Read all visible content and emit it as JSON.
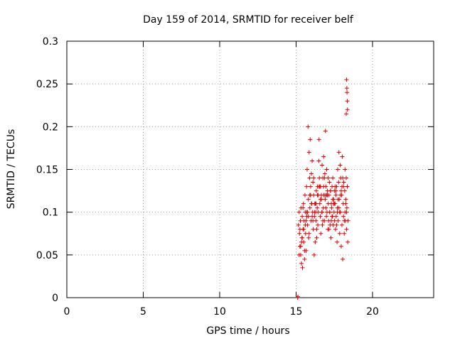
{
  "chart_data": {
    "type": "scatter",
    "title": "Day 159 of 2014, SRMTID for receiver belf",
    "xlabel": "GPS time / hours",
    "ylabel": "SRMTID / TECUs",
    "xlim": [
      0,
      24
    ],
    "ylim": [
      0,
      0.3
    ],
    "xticks": [
      0,
      5,
      10,
      15,
      20
    ],
    "xtick_labels": [
      "0",
      "5",
      "10",
      "15",
      "20"
    ],
    "yticks": [
      0,
      0.05,
      0.1,
      0.15,
      0.2,
      0.25,
      0.3
    ],
    "ytick_labels": [
      "0",
      "0.05",
      "0.1",
      "0.15",
      "0.2",
      "0.25",
      "0.3"
    ],
    "grid": true,
    "marker": "+",
    "color": "#e00000",
    "series": [
      {
        "name": "SRMTID",
        "x": [
          15.1,
          15.12,
          15.15,
          15.2,
          15.22,
          15.25,
          15.28,
          15.3,
          15.32,
          15.35,
          15.38,
          15.4,
          15.42,
          15.45,
          15.48,
          15.5,
          15.52,
          15.55,
          15.58,
          15.6,
          15.62,
          15.65,
          15.68,
          15.7,
          15.72,
          15.75,
          15.78,
          15.8,
          15.82,
          15.85,
          15.88,
          15.9,
          15.92,
          15.95,
          15.98,
          16.0,
          16.02,
          16.05,
          16.08,
          16.1,
          16.12,
          16.15,
          16.18,
          16.2,
          16.22,
          16.25,
          16.28,
          16.3,
          16.32,
          16.35,
          16.38,
          16.4,
          16.42,
          16.45,
          16.48,
          16.5,
          16.52,
          16.55,
          16.58,
          16.6,
          16.62,
          16.65,
          16.68,
          16.7,
          16.72,
          16.75,
          16.78,
          16.8,
          16.82,
          16.85,
          16.88,
          16.9,
          16.92,
          16.95,
          16.98,
          17.0,
          17.02,
          17.05,
          17.08,
          17.1,
          17.12,
          17.15,
          17.18,
          17.2,
          17.22,
          17.25,
          17.28,
          17.3,
          17.32,
          17.35,
          17.38,
          17.4,
          17.42,
          17.45,
          17.48,
          17.5,
          17.52,
          17.55,
          17.58,
          17.6,
          17.62,
          17.65,
          17.68,
          17.7,
          17.72,
          17.75,
          17.78,
          17.8,
          17.82,
          17.85,
          17.88,
          17.9,
          17.92,
          17.95,
          17.98,
          18.0,
          18.02,
          18.05,
          18.08,
          18.1,
          18.12,
          18.15,
          18.18,
          18.2,
          18.22,
          18.25,
          18.28,
          18.3,
          18.32,
          18.35,
          18.38,
          18.4,
          15.25,
          15.35,
          15.45,
          15.55,
          15.65,
          15.75,
          15.85,
          15.95,
          16.05,
          16.15,
          16.25,
          16.35,
          16.45,
          16.55,
          16.65,
          16.75,
          16.85,
          16.95,
          17.05,
          17.15,
          17.25,
          17.35,
          17.45,
          17.55,
          17.65,
          17.75,
          17.85,
          17.95,
          18.05,
          18.15,
          18.25,
          18.35,
          15.3,
          15.5,
          15.7,
          15.9,
          16.1,
          16.3,
          16.5,
          16.7,
          16.9,
          17.1,
          17.3,
          17.5,
          17.7,
          17.9,
          18.1,
          18.3,
          15.2,
          15.4,
          15.6,
          15.8,
          16.0,
          16.2,
          16.4,
          16.6,
          16.8,
          17.0,
          17.2,
          17.4,
          17.6,
          17.8,
          18.0,
          18.2,
          18.3,
          18.32,
          18.35,
          18.28,
          18.33,
          18.36
        ],
        "y": [
          0.0,
          0.001,
          0.085,
          0.1,
          0.075,
          0.06,
          0.09,
          0.05,
          0.105,
          0.04,
          0.07,
          0.095,
          0.035,
          0.08,
          0.11,
          0.065,
          0.09,
          0.045,
          0.12,
          0.1,
          0.075,
          0.055,
          0.13,
          0.095,
          0.15,
          0.085,
          0.2,
          0.115,
          0.07,
          0.17,
          0.14,
          0.105,
          0.185,
          0.13,
          0.09,
          0.145,
          0.11,
          0.16,
          0.1,
          0.135,
          0.08,
          0.12,
          0.05,
          0.095,
          0.11,
          0.065,
          0.1,
          0.09,
          0.125,
          0.07,
          0.105,
          0.13,
          0.085,
          0.12,
          0.16,
          0.185,
          0.14,
          0.11,
          0.095,
          0.13,
          0.075,
          0.12,
          0.1,
          0.155,
          0.085,
          0.14,
          0.105,
          0.165,
          0.12,
          0.09,
          0.145,
          0.115,
          0.195,
          0.13,
          0.095,
          0.15,
          0.1,
          0.125,
          0.08,
          0.11,
          0.09,
          0.12,
          0.135,
          0.1,
          0.085,
          0.125,
          0.07,
          0.11,
          0.105,
          0.13,
          0.095,
          0.14,
          0.085,
          0.115,
          0.1,
          0.125,
          0.09,
          0.11,
          0.08,
          0.12,
          0.095,
          0.13,
          0.065,
          0.105,
          0.15,
          0.09,
          0.135,
          0.17,
          0.115,
          0.075,
          0.155,
          0.1,
          0.14,
          0.06,
          0.12,
          0.085,
          0.165,
          0.045,
          0.11,
          0.095,
          0.135,
          0.075,
          0.125,
          0.1,
          0.09,
          0.115,
          0.14,
          0.08,
          0.105,
          0.13,
          0.065,
          0.09,
          0.08,
          0.065,
          0.105,
          0.055,
          0.09,
          0.1,
          0.075,
          0.12,
          0.095,
          0.14,
          0.11,
          0.08,
          0.1,
          0.13,
          0.115,
          0.09,
          0.14,
          0.105,
          0.12,
          0.08,
          0.125,
          0.095,
          0.11,
          0.13,
          0.085,
          0.115,
          0.1,
          0.125,
          0.14,
          0.09,
          0.11,
          0.13,
          0.06,
          0.08,
          0.1,
          0.12,
          0.09,
          0.11,
          0.13,
          0.1,
          0.12,
          0.14,
          0.09,
          0.11,
          0.1,
          0.12,
          0.13,
          0.1,
          0.05,
          0.07,
          0.085,
          0.095,
          0.11,
          0.1,
          0.12,
          0.115,
          0.13,
          0.12,
          0.1,
          0.115,
          0.125,
          0.105,
          0.13,
          0.15,
          0.255,
          0.245,
          0.23,
          0.215,
          0.24,
          0.22
        ]
      }
    ]
  }
}
